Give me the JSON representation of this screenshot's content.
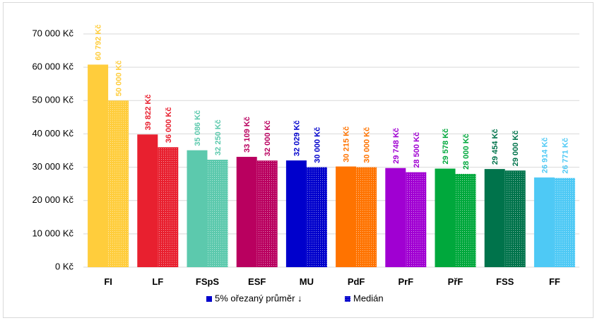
{
  "chart_data": {
    "type": "bar",
    "categories": [
      "FI",
      "LF",
      "FSpS",
      "ESF",
      "MU",
      "PdF",
      "PrF",
      "PřF",
      "FSS",
      "FF"
    ],
    "colors": [
      "#ffcd3c",
      "#e8202f",
      "#5cc9ad",
      "#b9005f",
      "#0000cc",
      "#ff7300",
      "#a000d2",
      "#00a83c",
      "#00734b",
      "#4ec9f5"
    ],
    "series": [
      {
        "name": "5% ořezaný průměr ↓",
        "values": [
          60792,
          39822,
          35086,
          33109,
          32029,
          30215,
          29748,
          29578,
          29454,
          26914
        ],
        "labels": [
          "60 792 Kč",
          "39 822 Kč",
          "35 086 Kč",
          "33 109 Kč",
          "32 029 Kč",
          "30 215 Kč",
          "29 748 Kč",
          "29 578 Kč",
          "29 454 Kč",
          "26 914 Kč"
        ]
      },
      {
        "name": "Medián",
        "values": [
          50000,
          36000,
          32250,
          32000,
          30000,
          30000,
          28500,
          28000,
          29000,
          26771
        ],
        "labels": [
          "50 000 Kč",
          "36 000 Kč",
          "32 250 Kč",
          "32 000 Kč",
          "30 000 Kč",
          "30 000 Kč",
          "28 500 Kč",
          "28 000 Kč",
          "29 000 Kč",
          "26 771 Kč"
        ]
      }
    ],
    "ylim": [
      0,
      70000
    ],
    "yticks": [
      0,
      10000,
      20000,
      30000,
      40000,
      50000,
      60000,
      70000
    ],
    "ytick_labels": [
      "0 Kč",
      "10 000 Kč",
      "20 000 Kč",
      "30 000 Kč",
      "40 000 Kč",
      "50 000 Kč",
      "60 000 Kč",
      "70 000 Kč"
    ],
    "grid": true,
    "legend_position": "bottom",
    "title": "",
    "xlabel": "",
    "ylabel": ""
  }
}
